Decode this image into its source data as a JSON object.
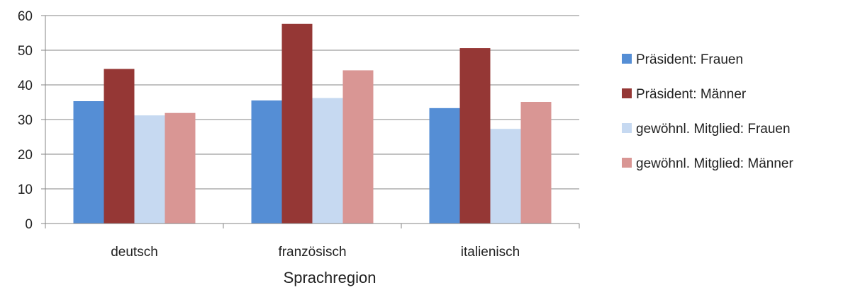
{
  "chart_data": {
    "type": "bar",
    "title": "",
    "xlabel": "Sprachregion",
    "ylabel": "",
    "ylim": [
      0,
      60
    ],
    "yticks": [
      0,
      10,
      20,
      30,
      40,
      50,
      60
    ],
    "grid": true,
    "legend_position": "right",
    "categories": [
      "deutsch",
      "französisch",
      "italienisch"
    ],
    "series": [
      {
        "name": "Präsident: Frauen",
        "color": "#558ED5",
        "values": [
          35.3,
          35.5,
          33.3
        ]
      },
      {
        "name": "Präsident: Männer",
        "color": "#953735",
        "values": [
          44.6,
          57.6,
          50.6
        ]
      },
      {
        "name": "gewöhnl. Mitglied: Frauen",
        "color": "#C6D9F1",
        "values": [
          31.2,
          36.2,
          27.3
        ]
      },
      {
        "name": "gewöhnl. Mitglied: Männer",
        "color": "#D99694",
        "values": [
          31.9,
          44.2,
          35.1
        ]
      }
    ]
  }
}
